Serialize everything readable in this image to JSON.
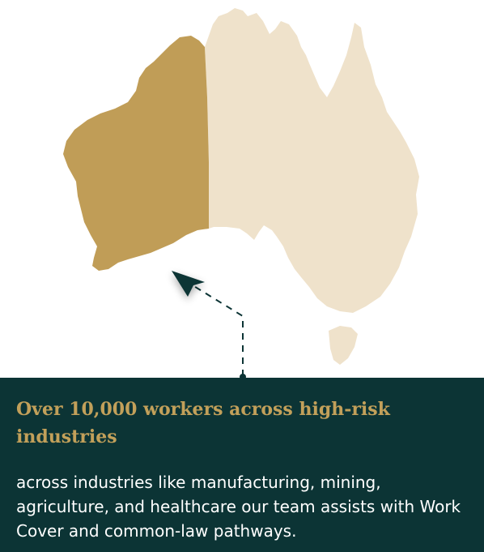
{
  "map": {
    "colors": {
      "highlight_region": "#c09d57",
      "other_region": "#efe2cb",
      "pointer": "#0c3435",
      "dashed_line": "#0c3435"
    }
  },
  "card": {
    "title": "Over 10,000 workers across high-risk industries",
    "body": "across industries like manufacturing, mining, agriculture, and healthcare our team assists with Work Cover and common-law pathways.",
    "background": "#0c3435",
    "title_color": "#c2a05a",
    "body_color": "#ffffff"
  }
}
